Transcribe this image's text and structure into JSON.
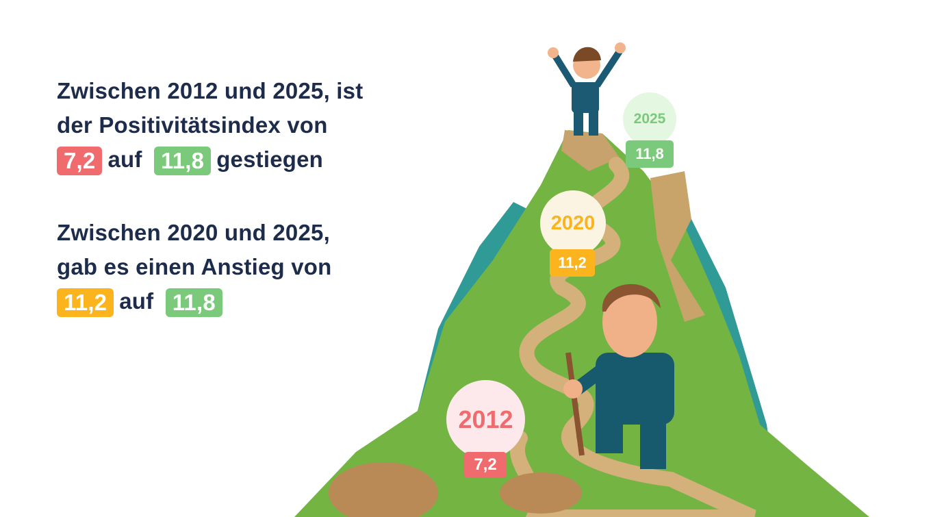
{
  "statement1": {
    "line1": "Zwischen 2012 und 2025, ist",
    "line2": "der Positivitätsindex von",
    "from_value": "7,2",
    "connector": "auf",
    "to_value": "11,8",
    "suffix": "gestiegen"
  },
  "statement2": {
    "line1": "Zwischen 2020 und 2025,",
    "line2": "gab es einen Anstieg von",
    "from_value": "11,2",
    "connector": "auf",
    "to_value": "11,8"
  },
  "milestones": [
    {
      "year": "2012",
      "value": "7,2",
      "color": "#f06b6e",
      "bg": "#fde8ec"
    },
    {
      "year": "2020",
      "value": "11,2",
      "color": "#fbb41e",
      "bg": "#fcf4e2"
    },
    {
      "year": "2025",
      "value": "11,8",
      "color": "#7bc97a",
      "bg": "#e4f7e1"
    }
  ],
  "colors": {
    "text": "#1e2c4c",
    "red": "#f06b6e",
    "amber": "#fbb41e",
    "green": "#7bc97a"
  }
}
